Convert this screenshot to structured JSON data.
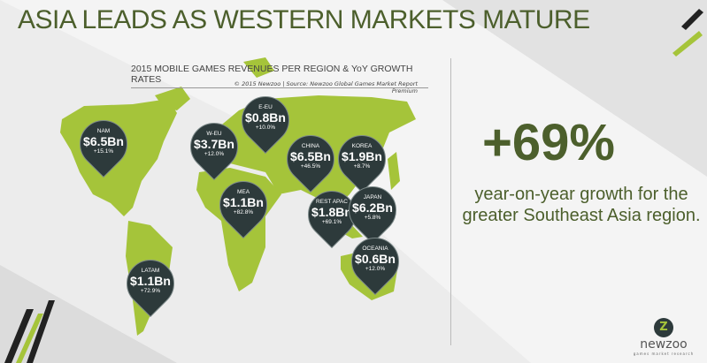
{
  "title": "ASIA LEADS AS WESTERN MARKETS MATURE",
  "subtitle": "2015 MOBILE GAMES REVENUES PER REGION & YoY GROWTH RATES",
  "source": "© 2015 Newzoo | Source: Newzoo Global Games Market Report Premium",
  "highlight": {
    "value": "+69%",
    "text": "year-on-year growth for the greater Southeast Asia region."
  },
  "colors": {
    "accent": "#4c5f2c",
    "map": "#a5c43a",
    "pin": "#2d3a3b"
  },
  "regions": [
    {
      "name": "NAM",
      "revenue": "$6.5Bn",
      "growth": "+15.1%"
    },
    {
      "name": "W-EU",
      "revenue": "$3.7Bn",
      "growth": "+12.0%"
    },
    {
      "name": "E-EU",
      "revenue": "$0.8Bn",
      "growth": "+10.0%"
    },
    {
      "name": "CHINA",
      "revenue": "$6.5Bn",
      "growth": "+46.5%"
    },
    {
      "name": "KOREA",
      "revenue": "$1.9Bn",
      "growth": "+8.7%"
    },
    {
      "name": "MEA",
      "revenue": "$1.1Bn",
      "growth": "+82.8%"
    },
    {
      "name": "REST APAC",
      "revenue": "$1.8Bn",
      "growth": "+69.1%"
    },
    {
      "name": "JAPAN",
      "revenue": "$6.2Bn",
      "growth": "+5.8%"
    },
    {
      "name": "OCEANIA",
      "revenue": "$0.6Bn",
      "growth": "+12.0%"
    },
    {
      "name": "LATAM",
      "revenue": "$1.1Bn",
      "growth": "+72.9%"
    }
  ],
  "logo": {
    "name": "newzoo",
    "tagline": "games market research"
  }
}
